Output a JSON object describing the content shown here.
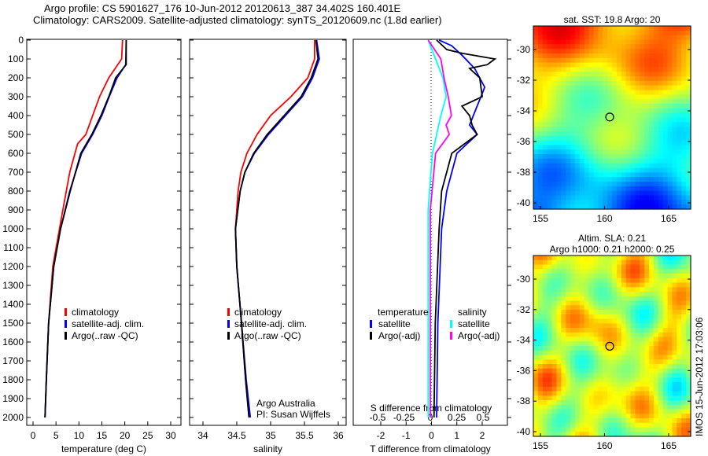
{
  "title": {
    "line1": "Argo profile: CS 5901627_176 10-Jun-2012 20120613_387 34.402S 160.401E",
    "line2": "Climatology: CARS2009. Satellite-adjusted climatology: synTS_20120609.nc (1.8d earlier)"
  },
  "colors": {
    "clim": "#ff0000",
    "sat": "#0000ff",
    "argo": "#000000",
    "sat_s": "#00ffff",
    "argo_s": "#ff00ff"
  },
  "chart_data": [
    {
      "type": "line",
      "name": "temperature",
      "xlabel": "temperature (deg C)",
      "xlim": [
        -1,
        31
      ],
      "ylim": [
        0,
        2050
      ],
      "xticks": [
        0,
        5,
        10,
        15,
        20,
        25,
        30
      ],
      "yticks": [
        0,
        100,
        200,
        300,
        400,
        500,
        600,
        700,
        800,
        900,
        1000,
        1100,
        1200,
        1300,
        1400,
        1500,
        1600,
        1700,
        1800,
        1900,
        2000
      ],
      "legend": [
        "climatology",
        "satellite-adj. clim.",
        "Argo(..raw -QC)"
      ],
      "series": [
        {
          "name": "climatology",
          "color": "clim",
          "depth": [
            0,
            100,
            200,
            300,
            400,
            500,
            550,
            700,
            900,
            1200,
            1500,
            1800,
            2000
          ],
          "values": [
            19.5,
            19.3,
            16.5,
            14.5,
            13,
            11.5,
            9.7,
            8,
            6.5,
            4.3,
            3.4,
            2.9,
            2.6
          ]
        },
        {
          "name": "satellite-adj. clim.",
          "color": "sat",
          "depth": [
            0,
            130,
            200,
            300,
            400,
            500,
            600,
            800,
            1000,
            1200,
            1500,
            1800,
            2000
          ],
          "values": [
            20.3,
            20.2,
            18.3,
            16.6,
            15,
            13,
            10.6,
            8,
            6,
            4.5,
            3.4,
            2.9,
            2.6
          ]
        },
        {
          "name": "Argo(..raw -QC)",
          "color": "argo",
          "depth": [
            0,
            130,
            200,
            300,
            400,
            500,
            600,
            800,
            1000,
            1200,
            1500,
            1800,
            2000
          ],
          "values": [
            20.3,
            20.3,
            18,
            16.5,
            14.8,
            12.8,
            10.4,
            8.1,
            6,
            4.5,
            3.4,
            2.9,
            2.6
          ]
        }
      ]
    },
    {
      "type": "line",
      "name": "salinity",
      "xlabel": "salinity",
      "xlim": [
        33.8,
        36.1
      ],
      "ylim": [
        0,
        2050
      ],
      "xticks": [
        34,
        34.5,
        35,
        35.5,
        36
      ],
      "legend": [
        "climatology",
        "satellite-adj. clim.",
        "Argo(..raw -QC)"
      ],
      "annotation": [
        "Argo Australia",
        "PI: Susan Wijffels"
      ],
      "series": [
        {
          "name": "climatology",
          "color": "clim",
          "depth": [
            0,
            100,
            200,
            300,
            400,
            500,
            600,
            700,
            800,
            1000,
            1200,
            1500,
            1800,
            2000
          ],
          "values": [
            35.65,
            35.65,
            35.55,
            35.3,
            35.0,
            34.8,
            34.65,
            34.56,
            34.52,
            34.48,
            34.5,
            34.57,
            34.63,
            34.68
          ]
        },
        {
          "name": "satellite-adj. clim.",
          "color": "sat",
          "depth": [
            0,
            100,
            200,
            300,
            400,
            500,
            600,
            700,
            800,
            1000,
            1200,
            1500,
            1800,
            2000
          ],
          "values": [
            35.68,
            35.72,
            35.62,
            35.47,
            35.22,
            34.97,
            34.76,
            34.62,
            34.55,
            34.48,
            34.5,
            34.57,
            34.64,
            34.7
          ]
        },
        {
          "name": "Argo(..raw -QC)",
          "color": "argo",
          "depth": [
            0,
            100,
            200,
            300,
            400,
            500,
            600,
            700,
            800,
            1000,
            1200,
            1500,
            1800,
            2000
          ],
          "values": [
            35.67,
            35.7,
            35.6,
            35.45,
            35.2,
            34.95,
            34.75,
            34.62,
            34.55,
            34.48,
            34.5,
            34.57,
            34.63,
            34.68
          ]
        }
      ]
    },
    {
      "type": "line",
      "name": "difference",
      "xlabel": "T difference from climatology",
      "x2label": "S difference from climatology",
      "xlim": [
        -3,
        3
      ],
      "x2lim": [
        -0.75,
        0.75
      ],
      "xticks": [
        -2,
        -1,
        0,
        1,
        2
      ],
      "x2ticks": [
        -0.5,
        -0.25,
        0,
        0.25,
        0.5
      ],
      "legend_t": [
        "temperature",
        "satellite",
        "Argo(-adj)"
      ],
      "legend_s": [
        "salinity",
        "satellite",
        "Argo(-adj)"
      ],
      "series": [
        {
          "name": "T satellite",
          "color": "sat",
          "axis": "T",
          "depth": [
            0,
            30,
            80,
            150,
            250,
            350,
            450,
            500,
            600,
            800,
            1000,
            1500,
            2000
          ],
          "values": [
            0.3,
            0.8,
            1.2,
            1.7,
            2.1,
            1.8,
            1.5,
            1.8,
            1.0,
            0.6,
            0.4,
            0.25,
            0.2
          ]
        },
        {
          "name": "T Argo(-adj)",
          "color": "argo",
          "axis": "T",
          "depth": [
            0,
            50,
            70,
            100,
            130,
            150,
            200,
            300,
            350,
            400,
            450,
            500,
            600,
            800,
            1000,
            1500,
            2000
          ],
          "values": [
            0.2,
            0.6,
            1.2,
            2.5,
            2.2,
            1.5,
            1.9,
            2.0,
            1.2,
            1.5,
            1.6,
            1.8,
            0.8,
            0.4,
            0.3,
            0.15,
            0.1
          ]
        },
        {
          "name": "S satellite",
          "color": "sat_s",
          "axis": "S",
          "depth": [
            0,
            100,
            200,
            300,
            400,
            600,
            900,
            1200,
            2000
          ],
          "values": [
            -0.02,
            0.05,
            0.12,
            0.15,
            0.1,
            0.02,
            -0.02,
            -0.02,
            -0.02
          ]
        },
        {
          "name": "S Argo(-adj)",
          "color": "argo_s",
          "axis": "S",
          "depth": [
            0,
            100,
            200,
            300,
            400,
            450,
            500,
            600,
            900,
            1200,
            2000
          ],
          "values": [
            -0.02,
            0.1,
            0.13,
            0.17,
            0.2,
            0.15,
            0.18,
            0.05,
            0.0,
            0.0,
            0.0
          ]
        }
      ]
    },
    {
      "type": "heatmap",
      "name": "sst_map",
      "title": [
        "sat. SST: 19.8 Argo: 20"
      ],
      "xticks": [
        155,
        160,
        165
      ],
      "yticks": [
        -30,
        -32,
        -34,
        -36,
        -38,
        -40
      ],
      "xlim": [
        154.5,
        166.5
      ],
      "ylim": [
        -40.5,
        -28.5
      ],
      "marker": {
        "lon": 160.401,
        "lat": -34.402
      }
    },
    {
      "type": "heatmap",
      "name": "sla_map",
      "title": [
        "Altim. SLA: 0.21",
        "Argo h1000: 0.21 h2000: 0.25"
      ],
      "xticks": [
        155,
        160,
        165
      ],
      "yticks": [
        -30,
        -32,
        -34,
        -36,
        -38,
        -40
      ],
      "xlim": [
        154.5,
        166.5
      ],
      "ylim": [
        -40.5,
        -28.5
      ],
      "marker": {
        "lon": 160.401,
        "lat": -34.402
      }
    }
  ],
  "stamp": "IMOS 15-Jun-2012 17:03:06"
}
